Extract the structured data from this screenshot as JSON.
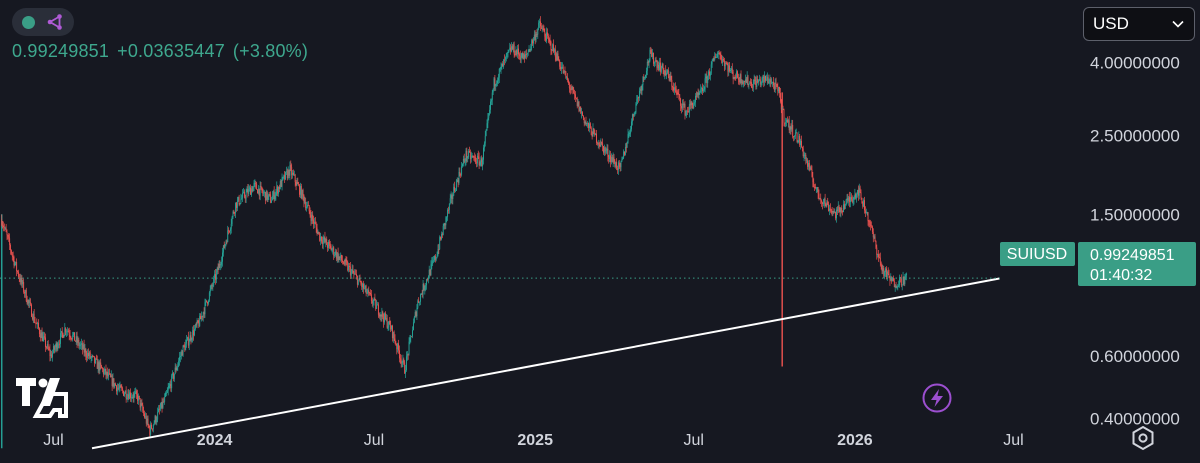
{
  "header": {
    "price": "0.99249851",
    "change": "+0.03635447",
    "change_pct": "(+3.80%)",
    "status_dot_color": "#3a9e86",
    "share_icon": "share-nodes-icon"
  },
  "currency_selector": {
    "label": "USD",
    "icon": "chevron-down-icon"
  },
  "last_price_label": {
    "symbol": "SUIUSD",
    "price": "0.99249851",
    "countdown": "01:40:32"
  },
  "colors": {
    "background": "#161821",
    "up": "#26a69a",
    "down": "#ef5350",
    "accent": "#3a9e86",
    "trendline": "#ffffff",
    "text": "#d1d4dc"
  },
  "chart_data": {
    "type": "candlestick",
    "symbol": "SUIUSD",
    "y_scale": "log",
    "ylim": [
      0.3,
      6.0
    ],
    "y_ticks": [
      {
        "value": 4.0,
        "label": "4.00000000"
      },
      {
        "value": 2.5,
        "label": "2.50000000"
      },
      {
        "value": 1.5,
        "label": "1.50000000"
      },
      {
        "value": 0.6,
        "label": "0.60000000"
      },
      {
        "value": 0.4,
        "label": "0.40000000"
      }
    ],
    "xlim": [
      "2023-05-01",
      "2026-09-15"
    ],
    "x_ticks": [
      {
        "date": "2023-07-01",
        "label": "Jul",
        "bold": false
      },
      {
        "date": "2024-01-01",
        "label": "2024",
        "bold": true
      },
      {
        "date": "2024-07-01",
        "label": "Jul",
        "bold": false
      },
      {
        "date": "2025-01-01",
        "label": "2025",
        "bold": true
      },
      {
        "date": "2025-07-01",
        "label": "Jul",
        "bold": false
      },
      {
        "date": "2026-01-01",
        "label": "2026",
        "bold": true
      },
      {
        "date": "2026-07-01",
        "label": "Jul",
        "bold": false
      }
    ],
    "grid": false,
    "last_price": 0.99249851,
    "price_path": [
      [
        "2023-05-03",
        1.45
      ],
      [
        "2023-05-20",
        1.05
      ],
      [
        "2023-06-10",
        0.75
      ],
      [
        "2023-06-28",
        0.6
      ],
      [
        "2023-07-15",
        0.72
      ],
      [
        "2023-08-05",
        0.62
      ],
      [
        "2023-08-25",
        0.55
      ],
      [
        "2023-09-15",
        0.48
      ],
      [
        "2023-10-05",
        0.46
      ],
      [
        "2023-10-19",
        0.37
      ],
      [
        "2023-11-05",
        0.45
      ],
      [
        "2023-11-25",
        0.62
      ],
      [
        "2023-12-15",
        0.75
      ],
      [
        "2024-01-05",
        1.05
      ],
      [
        "2024-01-25",
        1.6
      ],
      [
        "2024-02-15",
        1.8
      ],
      [
        "2024-03-05",
        1.65
      ],
      [
        "2024-03-27",
        2.0
      ],
      [
        "2024-04-10",
        1.7
      ],
      [
        "2024-04-30",
        1.3
      ],
      [
        "2024-05-20",
        1.15
      ],
      [
        "2024-06-10",
        1.0
      ],
      [
        "2024-06-30",
        0.85
      ],
      [
        "2024-07-20",
        0.72
      ],
      [
        "2024-08-05",
        0.55
      ],
      [
        "2024-08-20",
        0.85
      ],
      [
        "2024-09-10",
        1.15
      ],
      [
        "2024-09-30",
        1.75
      ],
      [
        "2024-10-14",
        2.2
      ],
      [
        "2024-11-01",
        2.1
      ],
      [
        "2024-11-15",
        3.5
      ],
      [
        "2024-12-05",
        4.4
      ],
      [
        "2024-12-20",
        4.1
      ],
      [
        "2025-01-06",
        5.1
      ],
      [
        "2025-01-25",
        4.2
      ],
      [
        "2025-02-10",
        3.4
      ],
      [
        "2025-02-28",
        2.7
      ],
      [
        "2025-03-20",
        2.3
      ],
      [
        "2025-04-08",
        2.0
      ],
      [
        "2025-04-25",
        3.0
      ],
      [
        "2025-05-12",
        4.2
      ],
      [
        "2025-06-01",
        3.7
      ],
      [
        "2025-06-22",
        2.9
      ],
      [
        "2025-07-10",
        3.3
      ],
      [
        "2025-07-28",
        4.3
      ],
      [
        "2025-08-15",
        3.7
      ],
      [
        "2025-09-05",
        3.5
      ],
      [
        "2025-09-25",
        3.6
      ],
      [
        "2025-10-06",
        3.3
      ],
      [
        "2025-10-12",
        2.8
      ],
      [
        "2025-10-30",
        2.4
      ],
      [
        "2025-11-20",
        1.7
      ],
      [
        "2025-12-10",
        1.5
      ],
      [
        "2026-01-05",
        1.75
      ],
      [
        "2026-01-15",
        1.5
      ],
      [
        "2026-02-01",
        1.05
      ],
      [
        "2026-02-14",
        0.96
      ],
      [
        "2026-03-01",
        0.99
      ]
    ],
    "spikes": [
      {
        "date": "2023-05-03",
        "low": 0.33,
        "high": 1.5,
        "direction": "up"
      },
      {
        "date": "2025-10-10",
        "low": 0.56,
        "high": 3.3,
        "direction": "down"
      }
    ],
    "trendline": [
      {
        "date": "2023-05-01",
        "value": 0.33
      },
      {
        "date": "2026-06-15",
        "value": 0.99
      }
    ]
  }
}
